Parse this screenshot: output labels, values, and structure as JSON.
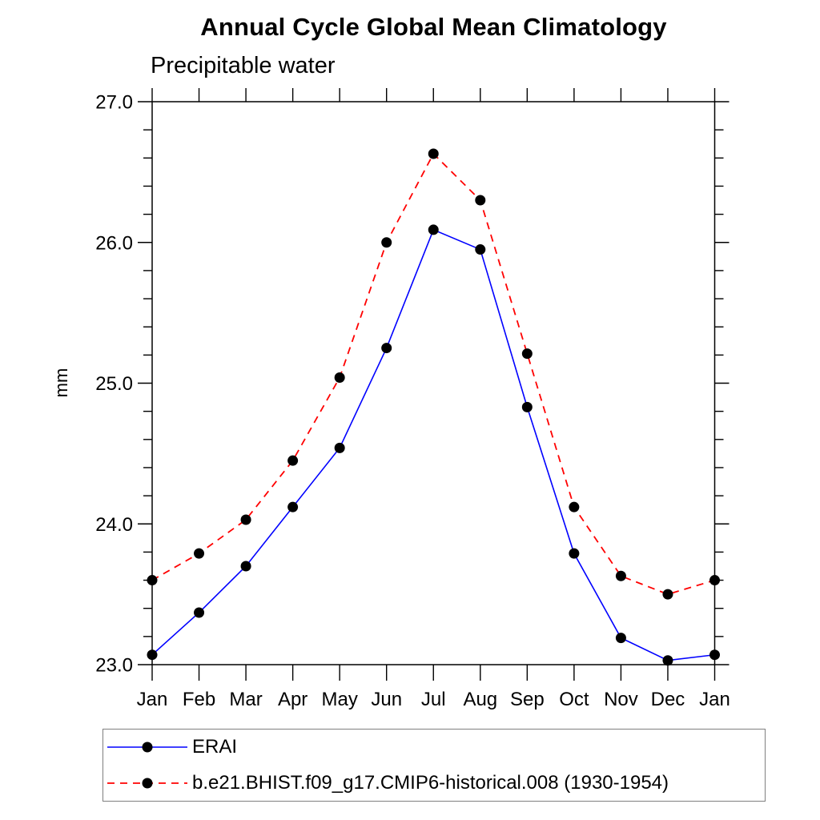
{
  "title": "Annual Cycle Global Mean Climatology",
  "subtitle": "Precipitable water",
  "ylabel": "mm",
  "chart_data": {
    "type": "line",
    "title": "Annual Cycle Global Mean Climatology",
    "subtitle": "Precipitable water",
    "xlabel": "",
    "ylabel": "mm",
    "categories": [
      "Jan",
      "Feb",
      "Mar",
      "Apr",
      "May",
      "Jun",
      "Jul",
      "Aug",
      "Sep",
      "Oct",
      "Nov",
      "Dec",
      "Jan"
    ],
    "series": [
      {
        "name": "ERAI",
        "color": "#0000ff",
        "line_style": "solid",
        "marker": "filled-circle",
        "marker_color": "#000000",
        "values": [
          23.07,
          23.37,
          23.7,
          24.12,
          24.54,
          25.25,
          26.09,
          25.95,
          24.83,
          23.79,
          23.19,
          23.03,
          23.07
        ]
      },
      {
        "name": "b.e21.BHIST.f09_g17.CMIP6-historical.008 (1930-1954)",
        "color": "#ff0000",
        "line_style": "dashed",
        "marker": "filled-circle",
        "marker_color": "#000000",
        "values": [
          23.6,
          23.79,
          24.03,
          24.45,
          25.04,
          26.0,
          26.63,
          26.3,
          25.21,
          24.12,
          23.63,
          23.5,
          23.6
        ]
      }
    ],
    "ylim": [
      23.0,
      27.0
    ],
    "ytick_major": 1.0,
    "ytick_minor": 0.2,
    "ytick_labels": [
      "23.0",
      "24.0",
      "25.0",
      "26.0",
      "27.0"
    ],
    "grid": false,
    "frame": "box",
    "tick_direction": "out",
    "legend_position": "bottom-left"
  }
}
